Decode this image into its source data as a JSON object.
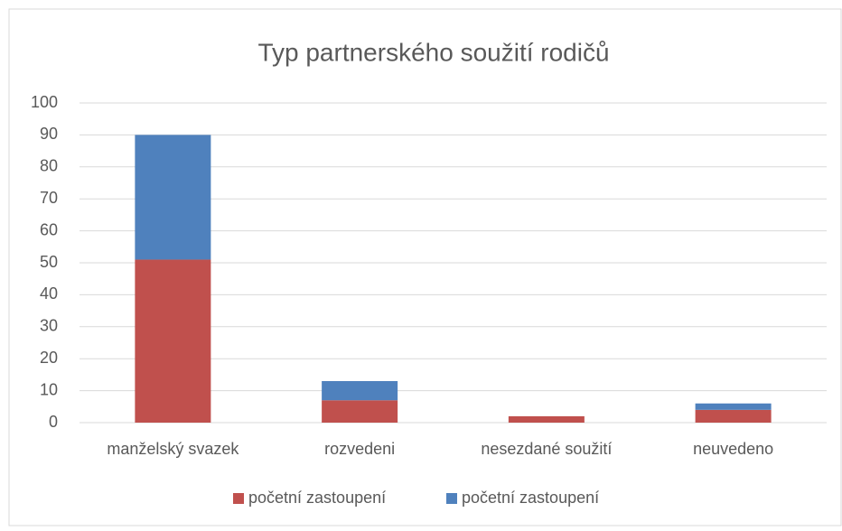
{
  "chart_data": {
    "type": "stacked_bar",
    "title": "Typ partnerského soužití rodičů",
    "categories": [
      "manželský svazek",
      "rozvedeni",
      "nesezdané soužití",
      "neuvedeno"
    ],
    "series": [
      {
        "name": "početní zastoupení",
        "color": "#c0504d",
        "values": [
          51,
          7,
          2,
          4
        ]
      },
      {
        "name": "početní zastoupení",
        "color": "#4f81bd",
        "values": [
          39,
          6,
          0,
          2
        ]
      }
    ],
    "ylim": [
      0,
      100
    ],
    "yticks": [
      0,
      10,
      20,
      30,
      40,
      50,
      60,
      70,
      80,
      90,
      100
    ],
    "grid": true,
    "legend": "bottom"
  }
}
